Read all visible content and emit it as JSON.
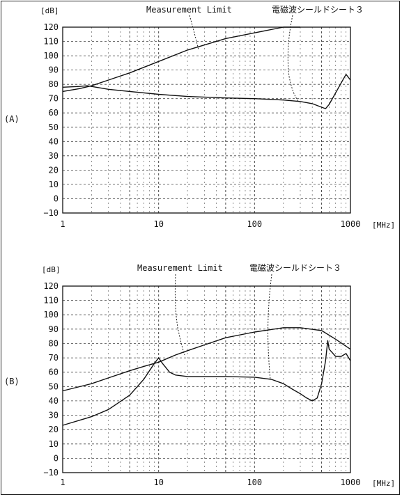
{
  "chart_data": [
    {
      "panel_label": "(A)",
      "type": "line",
      "xscale": "log",
      "xlim": [
        1,
        1000
      ],
      "ylim": [
        -10,
        120
      ],
      "y_ticks": [
        "120",
        "110",
        "100",
        "90",
        "80",
        "70",
        "60",
        "50",
        "40",
        "30",
        "20",
        "10",
        "0",
        "−10"
      ],
      "x_ticks": [
        "1",
        "10",
        "100",
        "1000"
      ],
      "y_unit": "[dB]",
      "x_unit": "[MHz]",
      "annotations": [
        "Measurement Limit",
        "電磁波シールドシート３"
      ],
      "series": [
        {
          "x": [
            1,
            1.5,
            2,
            3,
            5,
            10,
            20,
            50,
            100,
            200,
            300
          ],
          "y": [
            75,
            77,
            79,
            83,
            88,
            96,
            104,
            112,
            116,
            120,
            120
          ]
        },
        {
          "x": [
            1,
            1.5,
            1.8,
            2,
            3,
            5,
            10,
            20,
            50,
            100,
            200,
            300,
            400,
            500,
            550,
            600,
            700,
            800,
            900,
            1000
          ],
          "y": [
            78,
            78.5,
            79,
            78.5,
            76.5,
            75,
            73,
            71.5,
            70.5,
            70,
            69,
            68,
            66.5,
            64,
            63,
            66,
            74,
            81,
            87,
            83
          ]
        }
      ]
    },
    {
      "panel_label": "(B)",
      "type": "line",
      "xscale": "log",
      "xlim": [
        1,
        1000
      ],
      "ylim": [
        -10,
        120
      ],
      "y_ticks": [
        "120",
        "110",
        "100",
        "90",
        "80",
        "70",
        "60",
        "50",
        "40",
        "30",
        "20",
        "10",
        "0",
        "−10"
      ],
      "x_ticks": [
        "1",
        "10",
        "100",
        "1000"
      ],
      "y_unit": "[dB]",
      "x_unit": "[MHz]",
      "annotations": [
        "Measurement Limit",
        "電磁波シールドシート３"
      ],
      "series": [
        {
          "x": [
            1,
            2,
            3,
            5,
            7,
            10,
            15,
            20,
            30,
            50,
            100,
            200,
            300,
            500,
            700,
            1000
          ],
          "y": [
            47,
            52,
            56,
            61,
            64,
            67,
            72,
            75,
            79,
            84,
            88,
            91,
            91,
            89,
            83,
            76
          ]
        },
        {
          "x": [
            1,
            2,
            3,
            5,
            7,
            9,
            10,
            11,
            13,
            15,
            20,
            50,
            100,
            150,
            200,
            250,
            300,
            350,
            400,
            450,
            500,
            550,
            580,
            600,
            700,
            800,
            900,
            1000
          ],
          "y": [
            23,
            29,
            34,
            44,
            55,
            66,
            70,
            66,
            60,
            58,
            57,
            57,
            56.5,
            55,
            52,
            48,
            45,
            42,
            40,
            42,
            52,
            68,
            82,
            76,
            71,
            71,
            73,
            68
          ]
        }
      ]
    }
  ]
}
